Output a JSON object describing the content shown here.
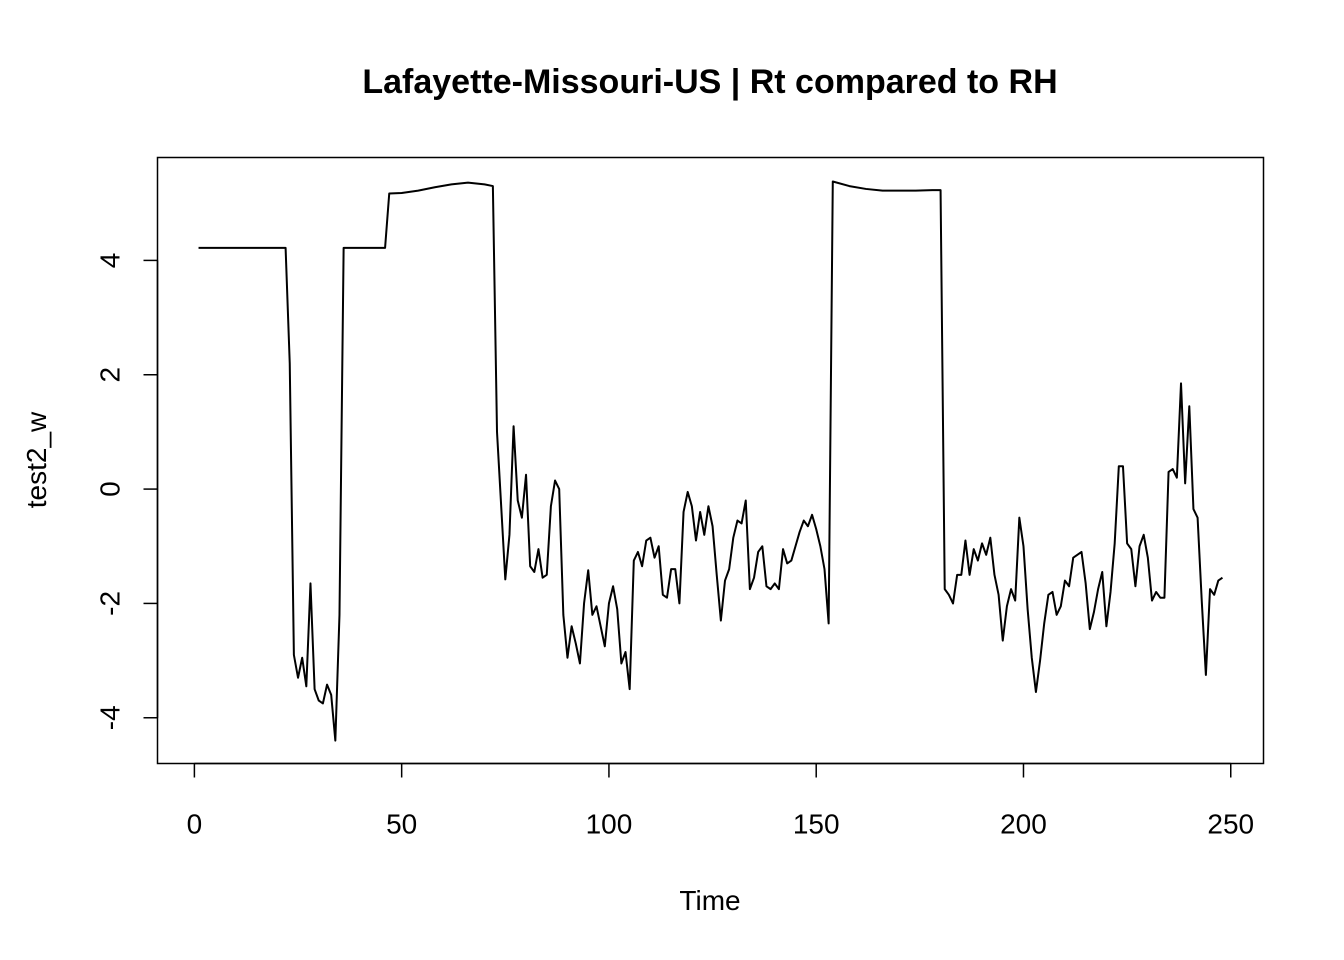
{
  "chart_data": {
    "type": "line",
    "title": "Lafayette-Missouri-US | Rt compared to RH",
    "xlabel": "Time",
    "ylabel": "test2_w",
    "xlim": [
      -8.9,
      257.9
    ],
    "ylim": [
      -4.8,
      5.8
    ],
    "x_ticks": [
      0,
      50,
      100,
      150,
      200,
      250
    ],
    "x_tick_labels": [
      "0",
      "50",
      "100",
      "150",
      "200",
      "250"
    ],
    "y_ticks": [
      -4,
      -2,
      0,
      2,
      4
    ],
    "y_tick_labels": [
      "-4",
      "-2",
      "0",
      "2",
      "4"
    ],
    "grid": false,
    "color": "#000000",
    "series": [
      {
        "x": [
          1,
          22,
          23,
          24,
          25,
          26,
          27,
          28,
          29,
          30,
          31,
          32,
          33,
          34,
          35,
          36,
          46,
          47,
          50,
          54,
          58,
          62,
          66,
          70,
          72,
          73,
          75,
          76,
          77,
          78,
          79,
          80,
          81,
          82,
          83,
          84,
          85,
          86,
          87,
          88,
          89,
          90,
          91,
          92,
          93,
          94,
          95,
          96,
          97,
          98,
          99,
          100,
          101,
          102,
          103,
          104,
          105,
          106,
          107,
          108,
          109,
          110,
          111,
          112,
          113,
          114,
          115,
          116,
          117,
          118,
          119,
          120,
          121,
          122,
          123,
          124,
          125,
          126,
          127,
          128,
          129,
          130,
          131,
          132,
          133,
          134,
          135,
          136,
          137,
          138,
          139,
          140,
          141,
          142,
          143,
          144,
          145,
          146,
          147,
          148,
          149,
          150,
          151,
          152,
          153,
          154,
          158,
          162,
          166,
          170,
          174,
          178,
          180,
          181,
          182,
          183,
          184,
          185,
          186,
          187,
          188,
          189,
          190,
          191,
          192,
          193,
          194,
          195,
          196,
          197,
          198,
          199,
          200,
          201,
          202,
          203,
          204,
          205,
          206,
          207,
          208,
          209,
          210,
          211,
          212,
          213,
          214,
          215,
          216,
          217,
          218,
          219,
          220,
          221,
          222,
          223,
          224,
          225,
          226,
          227,
          228,
          229,
          230,
          231,
          232,
          233,
          234,
          235,
          236,
          237,
          238,
          239,
          240,
          241,
          242,
          243,
          244,
          245,
          246,
          247,
          248
        ],
        "y": [
          4.22,
          4.22,
          2.2,
          -2.9,
          -3.3,
          -2.95,
          -3.45,
          -1.65,
          -3.5,
          -3.7,
          -3.75,
          -3.42,
          -3.6,
          -4.4,
          -2.2,
          4.22,
          4.22,
          5.17,
          5.18,
          5.22,
          5.28,
          5.33,
          5.36,
          5.33,
          5.3,
          1.0,
          -1.58,
          -0.8,
          1.1,
          -0.2,
          -0.5,
          0.25,
          -1.35,
          -1.45,
          -1.05,
          -1.55,
          -1.5,
          -0.3,
          0.15,
          0.0,
          -2.2,
          -2.95,
          -2.4,
          -2.7,
          -3.05,
          -2.0,
          -1.42,
          -2.2,
          -2.05,
          -2.4,
          -2.75,
          -2.0,
          -1.7,
          -2.1,
          -3.05,
          -2.85,
          -3.5,
          -1.25,
          -1.1,
          -1.35,
          -0.9,
          -0.85,
          -1.2,
          -1.0,
          -1.85,
          -1.9,
          -1.4,
          -1.4,
          -2.0,
          -0.4,
          -0.05,
          -0.3,
          -0.9,
          -0.4,
          -0.8,
          -0.3,
          -0.65,
          -1.5,
          -2.3,
          -1.6,
          -1.4,
          -0.85,
          -0.55,
          -0.6,
          -0.2,
          -1.75,
          -1.55,
          -1.1,
          -1.0,
          -1.7,
          -1.75,
          -1.65,
          -1.75,
          -1.05,
          -1.3,
          -1.25,
          -1.0,
          -0.75,
          -0.55,
          -0.65,
          -0.45,
          -0.7,
          -1.0,
          -1.4,
          -2.35,
          5.38,
          5.3,
          5.25,
          5.22,
          5.22,
          5.22,
          5.23,
          5.23,
          -1.75,
          -1.85,
          -2.0,
          -1.5,
          -1.5,
          -0.9,
          -1.5,
          -1.05,
          -1.25,
          -0.95,
          -1.15,
          -0.85,
          -1.5,
          -1.85,
          -2.65,
          -2.05,
          -1.75,
          -1.95,
          -0.5,
          -1.0,
          -2.1,
          -2.95,
          -3.55,
          -3.0,
          -2.35,
          -1.85,
          -1.8,
          -2.2,
          -2.05,
          -1.6,
          -1.7,
          -1.2,
          -1.15,
          -1.1,
          -1.65,
          -2.45,
          -2.15,
          -1.75,
          -1.45,
          -2.4,
          -1.8,
          -0.95,
          0.4,
          0.4,
          -0.95,
          -1.05,
          -1.7,
          -1.0,
          -0.8,
          -1.2,
          -1.95,
          -1.8,
          -1.9,
          -1.9,
          0.3,
          0.35,
          0.2,
          1.85,
          0.1,
          1.45,
          -0.35,
          -0.5,
          -1.95,
          -3.25,
          -1.75,
          -1.85,
          -1.6,
          -1.55
        ]
      }
    ]
  }
}
